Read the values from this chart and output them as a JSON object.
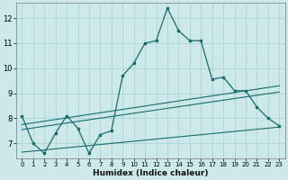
{
  "xlabel": "Humidex (Indice chaleur)",
  "bg_color": "#cce8e8",
  "grid_color": "#aad4d4",
  "line_color": "#1a6b6b",
  "xlim": [
    -0.5,
    23.5
  ],
  "ylim": [
    6.4,
    12.6
  ],
  "yticks": [
    7,
    8,
    9,
    10,
    11,
    12
  ],
  "xticks": [
    0,
    1,
    2,
    3,
    4,
    5,
    6,
    7,
    8,
    9,
    10,
    11,
    12,
    13,
    14,
    15,
    16,
    17,
    18,
    19,
    20,
    21,
    22,
    23
  ],
  "main_x": [
    0,
    1,
    2,
    3,
    4,
    5,
    6,
    7,
    8,
    9,
    10,
    11,
    12,
    13,
    14,
    15,
    16,
    17,
    18,
    19,
    20,
    21,
    22,
    23
  ],
  "main_y": [
    8.1,
    7.0,
    6.6,
    7.4,
    8.1,
    7.6,
    6.6,
    7.35,
    7.5,
    9.7,
    10.2,
    11.0,
    11.1,
    12.4,
    11.5,
    11.1,
    11.1,
    9.55,
    9.65,
    9.1,
    9.1,
    8.45,
    8.0,
    7.7
  ],
  "trend1_x": [
    0,
    23
  ],
  "trend1_y": [
    7.75,
    9.3
  ],
  "trend2_x": [
    0,
    23
  ],
  "trend2_y": [
    7.55,
    9.05
  ],
  "trend3_x": [
    0,
    23
  ],
  "trend3_y": [
    6.65,
    7.65
  ]
}
